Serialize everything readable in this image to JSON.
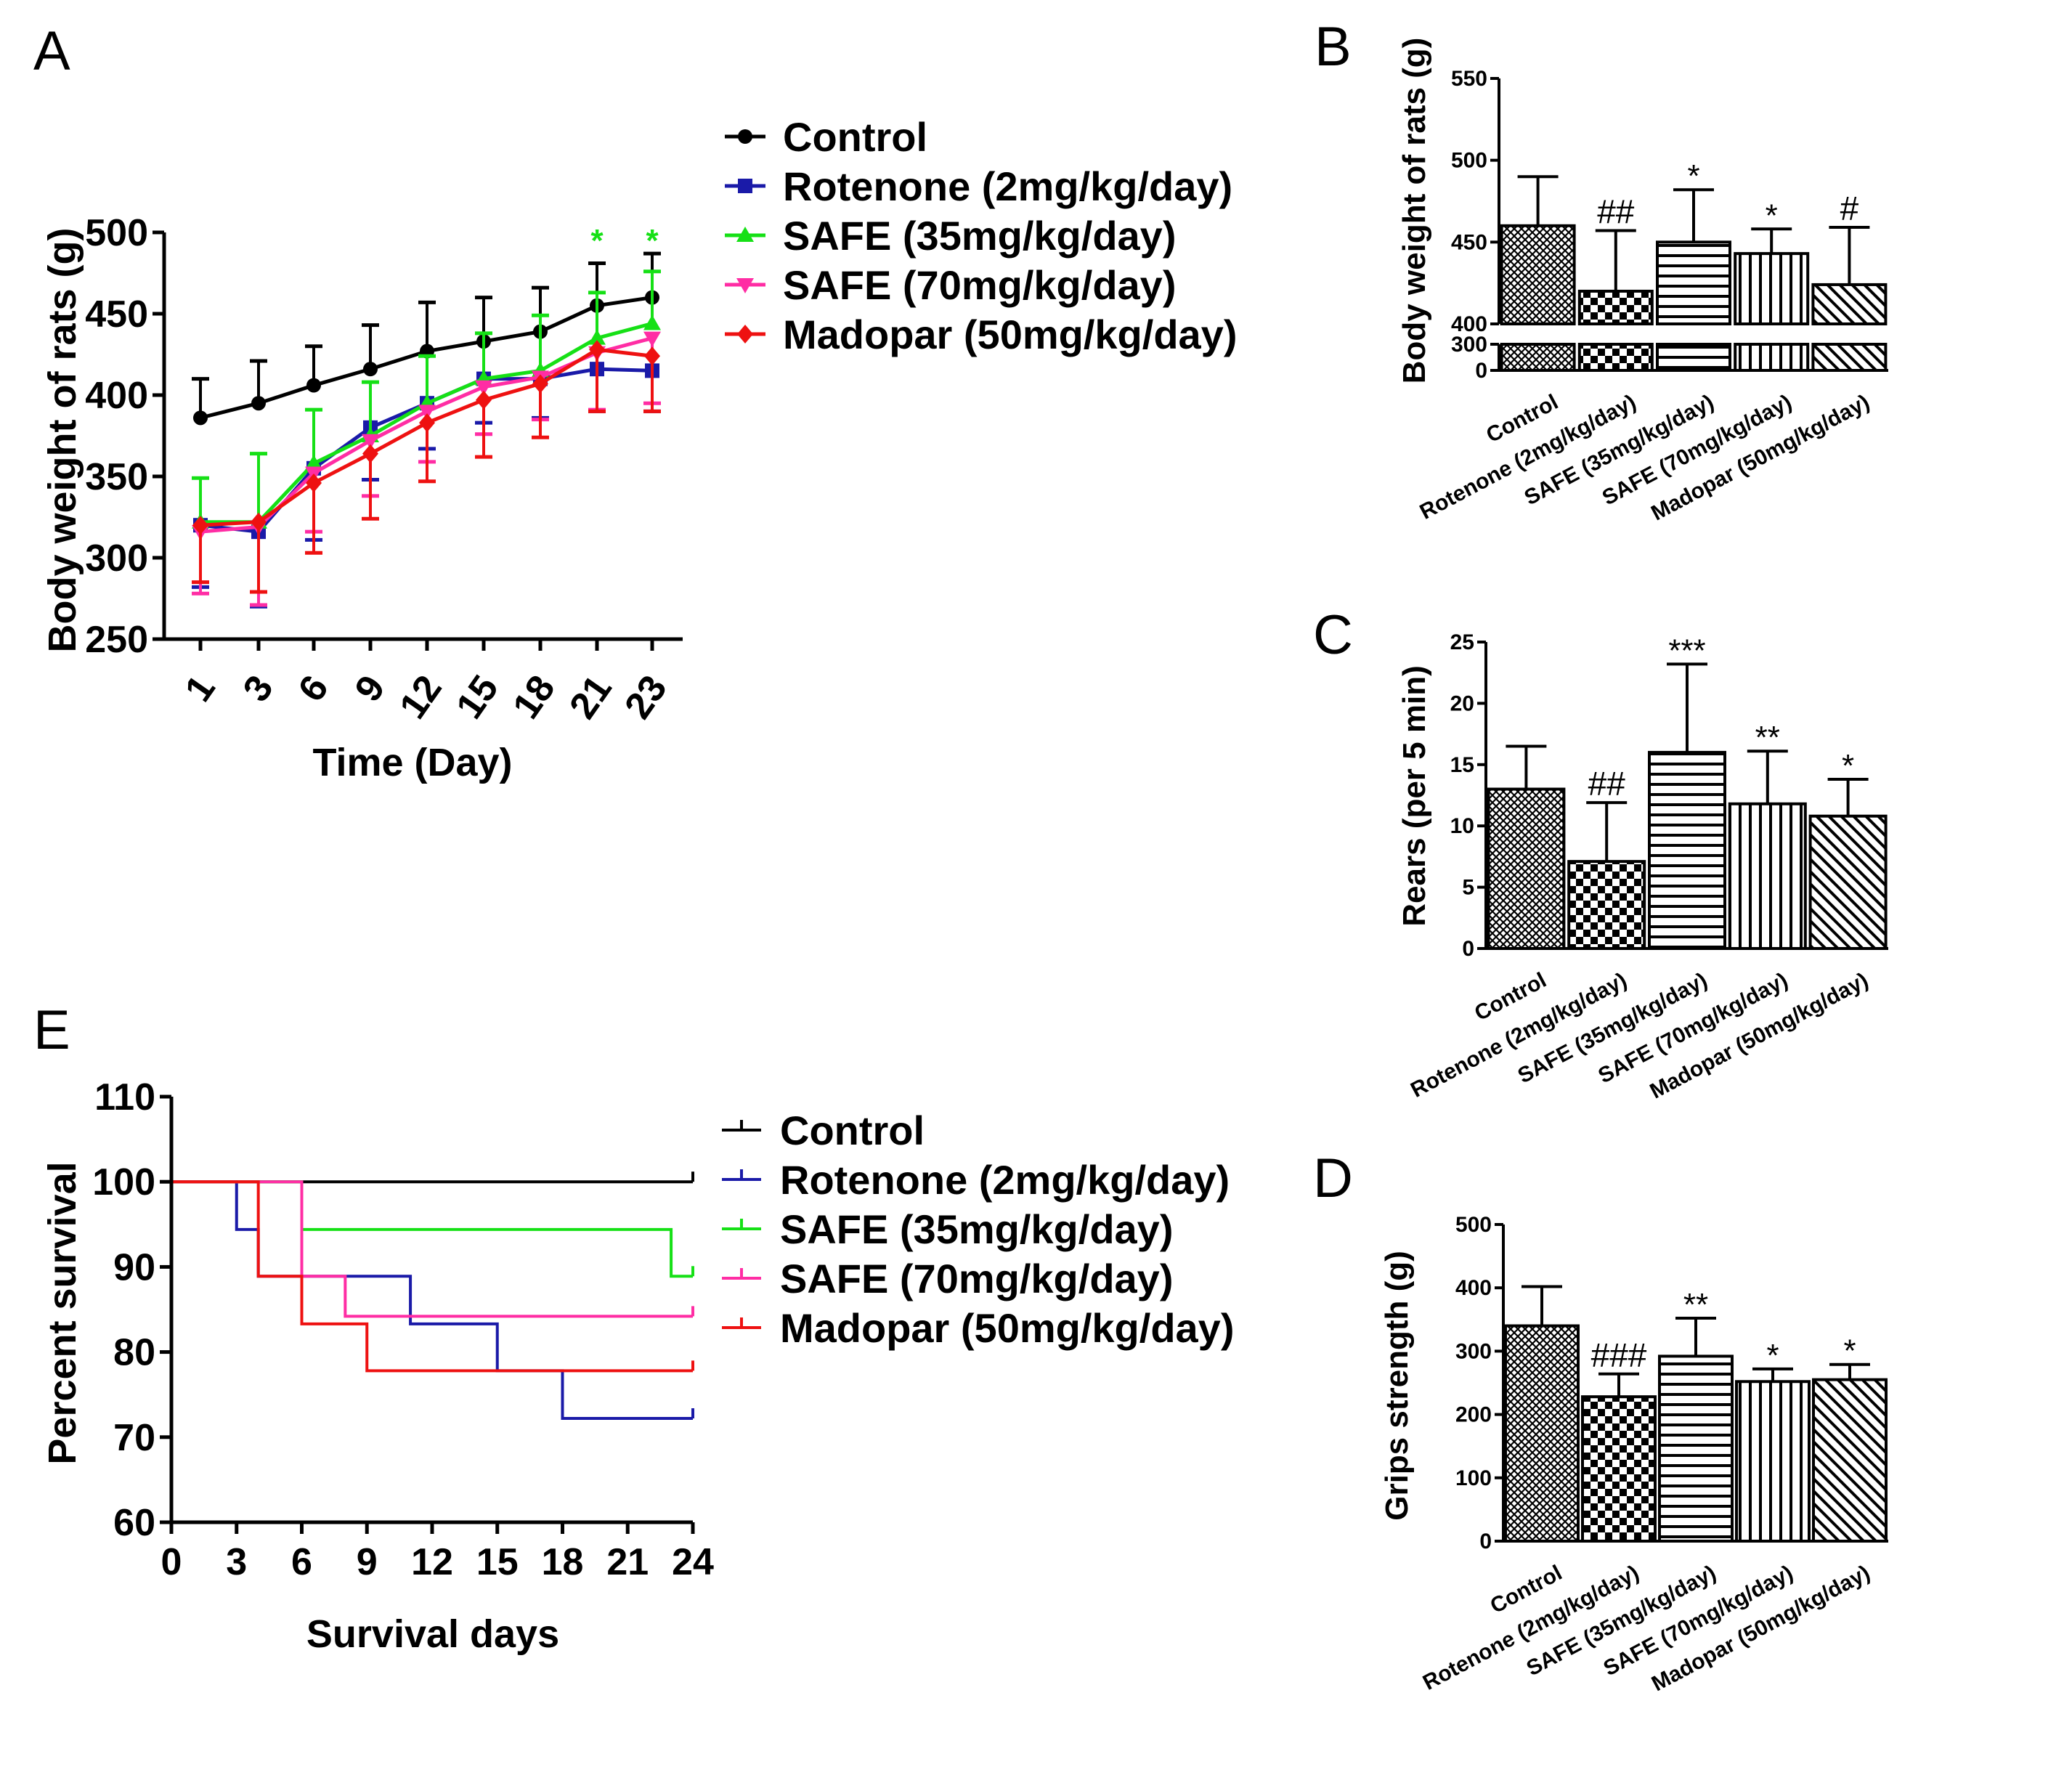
{
  "chart_data": [
    {
      "panel": "A",
      "type": "line",
      "ylabel": "Body weight of rats (g)",
      "xlabel": "Time (Day)",
      "x": [
        1,
        3,
        6,
        9,
        12,
        15,
        18,
        21,
        23
      ],
      "ylim": [
        250,
        500
      ],
      "yticks": [
        250,
        300,
        350,
        400,
        450,
        500
      ],
      "series": [
        {
          "name": "Control",
          "color": "#000000",
          "marker": "circle",
          "values": [
            386,
            395,
            406,
            416,
            427,
            433,
            439,
            455,
            460
          ],
          "errors": [
            24,
            26,
            24,
            27,
            30,
            27,
            27,
            26,
            27
          ]
        },
        {
          "name": "Rotenone (2mg/kg/day)",
          "color": "#1a1aa8",
          "marker": "square",
          "values": [
            320,
            316,
            355,
            380,
            395,
            410,
            410,
            416,
            415
          ],
          "errors": [
            38,
            46,
            44,
            32,
            28,
            27,
            24,
            26,
            25
          ]
        },
        {
          "name": "SAFE (35mg/kg/day)",
          "color": "#16e016",
          "marker": "triangle-up",
          "values": [
            322,
            322,
            358,
            375,
            395,
            410,
            415,
            435,
            444
          ],
          "errors": [
            27,
            42,
            33,
            33,
            29,
            28,
            34,
            28,
            32
          ]
        },
        {
          "name": "SAFE (70mg/kg/day)",
          "color": "#ff2da4",
          "marker": "triangle-down",
          "values": [
            316,
            319,
            352,
            372,
            390,
            405,
            411,
            426,
            435
          ],
          "errors": [
            38,
            48,
            36,
            34,
            31,
            29,
            26,
            35,
            40
          ]
        },
        {
          "name": "Madopar (50mg/kg/day)",
          "color": "#ee1111",
          "marker": "diamond",
          "values": [
            320,
            322,
            346,
            364,
            383,
            397,
            407,
            428,
            424
          ],
          "errors": [
            35,
            43,
            43,
            40,
            36,
            35,
            33,
            38,
            34
          ]
        }
      ],
      "annotations": [
        {
          "x": 21,
          "text": "*"
        },
        {
          "x": 23,
          "text": "*"
        }
      ]
    },
    {
      "panel": "B",
      "type": "bar",
      "ylabel": "Body weight of rats (g)",
      "categories": [
        "Control",
        "Rotenone (2mg/kg/day)",
        "SAFE (35mg/kg/day)",
        "SAFE (70mg/kg/day)",
        "Madopar (50mg/kg/day)"
      ],
      "values": [
        460,
        420,
        450,
        443,
        424
      ],
      "errors": [
        30,
        37,
        32,
        15,
        35
      ],
      "significance": [
        "",
        "##",
        "*",
        "*",
        "#"
      ],
      "ylim": [
        0,
        550
      ],
      "axis_break": [
        300,
        400
      ],
      "yticks_upper": [
        400,
        450,
        500,
        550
      ],
      "yticks_lower": [
        0,
        300
      ]
    },
    {
      "panel": "C",
      "type": "bar",
      "ylabel": "Rears (per 5 min)",
      "categories": [
        "Control",
        "Rotenone (2mg/kg/day)",
        "SAFE (35mg/kg/day)",
        "SAFE (70mg/kg/day)",
        "Madopar (50mg/kg/day)"
      ],
      "values": [
        13,
        7.1,
        16,
        11.8,
        10.8
      ],
      "errors": [
        3.5,
        4.8,
        7.2,
        4.3,
        3.0
      ],
      "significance": [
        "",
        "##",
        "***",
        "**",
        "*"
      ],
      "ylim": [
        0,
        25
      ],
      "yticks": [
        0,
        5,
        10,
        15,
        20,
        25
      ]
    },
    {
      "panel": "D",
      "type": "bar",
      "ylabel": "Grips strength (g)",
      "categories": [
        "Control",
        "Rotenone (2mg/kg/day)",
        "SAFE (35mg/kg/day)",
        "SAFE (70mg/kg/day)",
        "Madopar (50mg/kg/day)"
      ],
      "values": [
        340,
        228,
        292,
        252,
        255
      ],
      "errors": [
        62,
        36,
        60,
        20,
        24
      ],
      "significance": [
        "",
        "###",
        "**",
        "*",
        "*"
      ],
      "ylim": [
        0,
        500
      ],
      "yticks": [
        0,
        100,
        200,
        300,
        400,
        500
      ]
    },
    {
      "panel": "E",
      "type": "line",
      "step": true,
      "ylabel": "Percent survival",
      "xlabel": "Survival days",
      "xlim": [
        0,
        24
      ],
      "xticks": [
        0,
        3,
        6,
        9,
        12,
        15,
        18,
        21,
        24
      ],
      "ylim": [
        60,
        110
      ],
      "yticks": [
        60,
        70,
        80,
        90,
        100,
        110
      ],
      "series": [
        {
          "name": "Control",
          "color": "#000000",
          "points": [
            [
              0,
              100
            ],
            [
              24,
              100
            ]
          ]
        },
        {
          "name": "Rotenone (2mg/kg/day)",
          "color": "#1a1aa8",
          "points": [
            [
              0,
              100
            ],
            [
              3,
              94.4
            ],
            [
              4,
              88.9
            ],
            [
              11,
              83.3
            ],
            [
              15,
              77.8
            ],
            [
              18,
              72.2
            ],
            [
              24,
              72.2
            ]
          ]
        },
        {
          "name": "SAFE (35mg/kg/day)",
          "color": "#16e016",
          "points": [
            [
              0,
              100
            ],
            [
              6,
              94.4
            ],
            [
              23,
              88.9
            ],
            [
              24,
              88.9
            ]
          ]
        },
        {
          "name": "SAFE (70mg/kg/day)",
          "color": "#ff2da4",
          "points": [
            [
              0,
              100
            ],
            [
              6,
              88.9
            ],
            [
              8,
              84.2
            ],
            [
              24,
              84.2
            ]
          ]
        },
        {
          "name": "Madopar (50mg/kg/day)",
          "color": "#ee1111",
          "points": [
            [
              0,
              100
            ],
            [
              4,
              88.9
            ],
            [
              6,
              83.3
            ],
            [
              9,
              77.8
            ],
            [
              24,
              77.8
            ]
          ]
        }
      ]
    }
  ]
}
